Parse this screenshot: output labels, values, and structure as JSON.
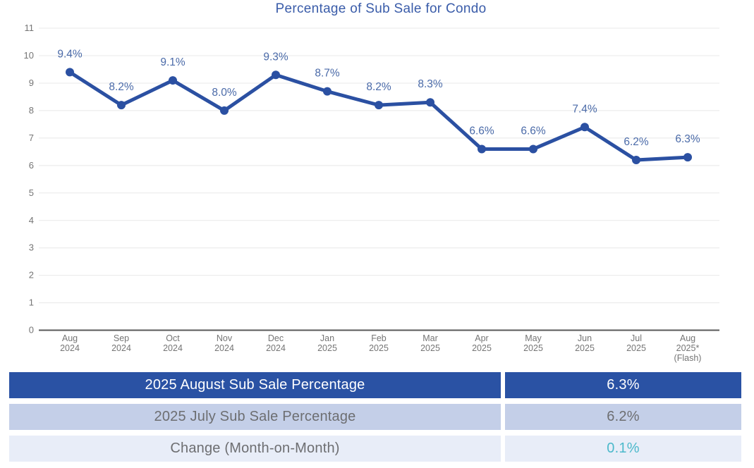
{
  "chart_data": {
    "type": "line",
    "title": "Percentage of Sub Sale for Condo",
    "categories": [
      [
        "Aug",
        "2024"
      ],
      [
        "Sep",
        "2024"
      ],
      [
        "Oct",
        "2024"
      ],
      [
        "Nov",
        "2024"
      ],
      [
        "Dec",
        "2024"
      ],
      [
        "Jan",
        "2025"
      ],
      [
        "Feb",
        "2025"
      ],
      [
        "Mar",
        "2025"
      ],
      [
        "Apr",
        "2025"
      ],
      [
        "May",
        "2025"
      ],
      [
        "Jun",
        "2025"
      ],
      [
        "Jul",
        "2025"
      ],
      [
        "Aug",
        "2025*",
        "(Flash)"
      ]
    ],
    "values": [
      9.4,
      8.2,
      9.1,
      8.0,
      9.3,
      8.7,
      8.2,
      8.3,
      6.6,
      6.6,
      7.4,
      6.2,
      6.3
    ],
    "point_labels": [
      "9.4%",
      "8.2%",
      "9.1%",
      "8.0%",
      "9.3%",
      "8.7%",
      "8.2%",
      "8.3%",
      "6.6%",
      "6.6%",
      "7.4%",
      "6.2%",
      "6.3%"
    ],
    "xlabel": "",
    "ylabel": "",
    "ylim": [
      0,
      11
    ],
    "ytick_step": 1,
    "grid": true,
    "legend": "none"
  },
  "colors": {
    "title_blue": "#3a5ca9",
    "data_label_blue": "#4a6aa8",
    "line_blue": "#2b50a2",
    "marker_blue": "#2b50a2",
    "gridline_gray": "#e8e8e8",
    "axis_line_gray": "#595959",
    "tick_label_gray": "#757575",
    "table_row1_bg": "#2a52a4",
    "table_row1_text": "#ffffff",
    "table_row2_bg": "#c4cfe8",
    "table_row3_bg": "#e8edf8",
    "table_text_gray": "#6d6e71",
    "change_teal": "#4cb9cb"
  },
  "table": {
    "rows": [
      {
        "label": "2025 August Sub Sale Percentage",
        "value": "6.3%"
      },
      {
        "label": "2025 July Sub Sale Percentage",
        "value": "6.2%"
      },
      {
        "label": "Change (Month-on-Month)",
        "value": "0.1%"
      }
    ]
  }
}
